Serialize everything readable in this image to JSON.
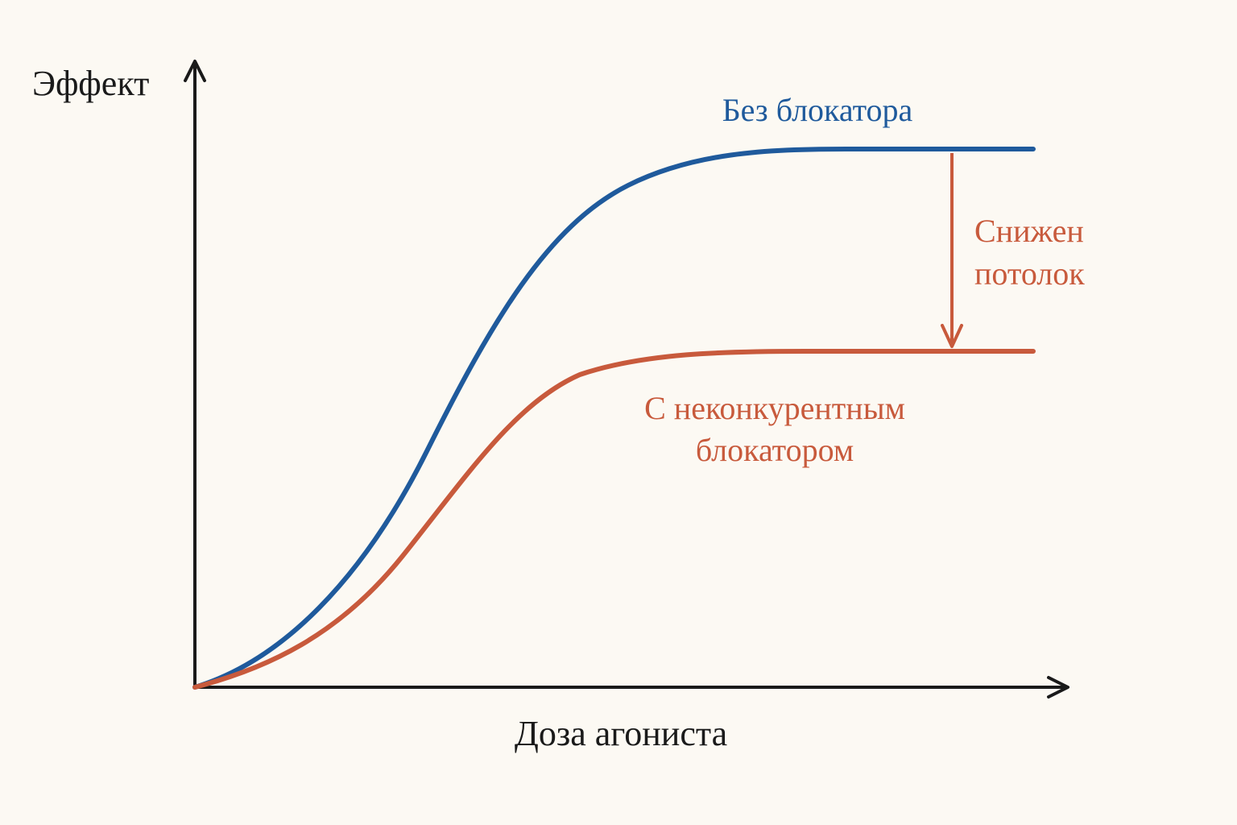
{
  "axes": {
    "y_label": "Эффект",
    "x_label": "Доза агониста"
  },
  "curves": [
    {
      "label_lines": [
        "Без блокатора"
      ]
    },
    {
      "label_lines": [
        "С неконкурентным",
        "блокатором"
      ]
    }
  ],
  "annotation": {
    "lines": [
      "Снижен",
      "потолок"
    ]
  }
}
